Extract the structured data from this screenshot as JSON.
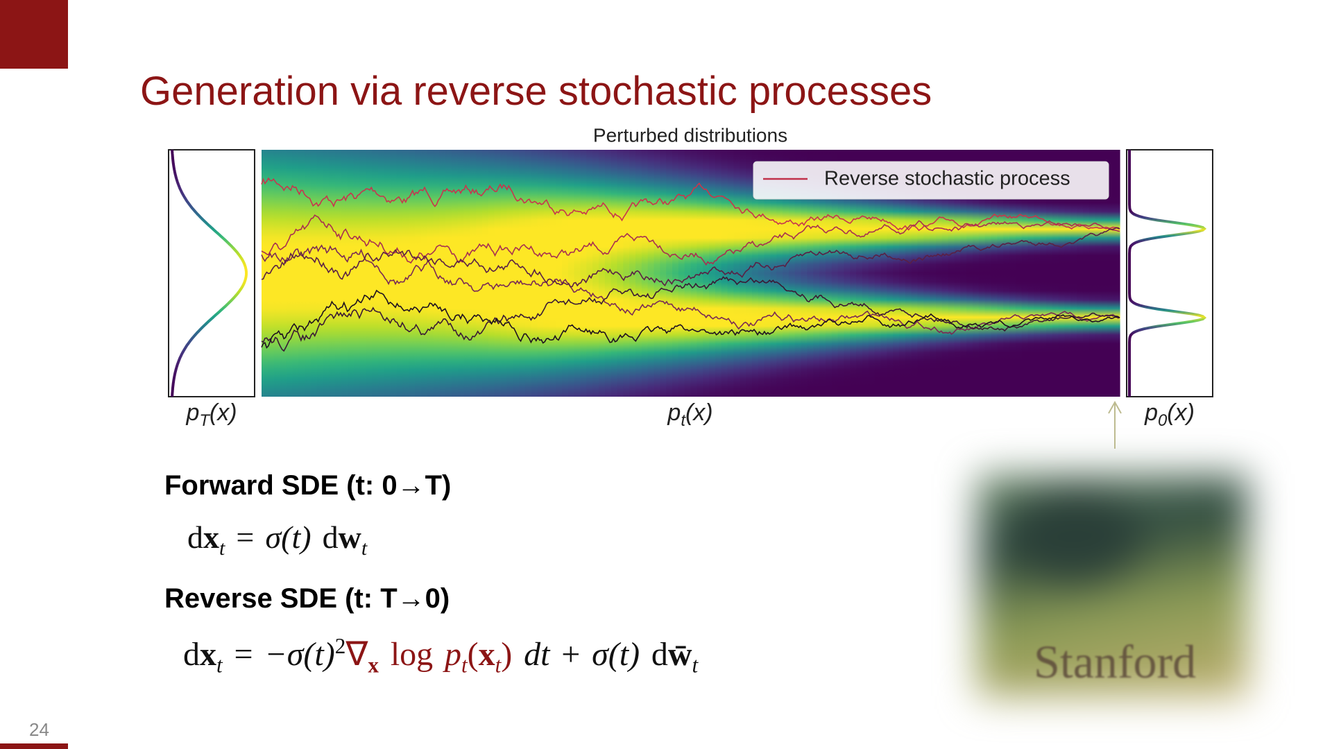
{
  "slide": {
    "title": "Generation via reverse stochastic processes",
    "page_number": "24",
    "logo": "Stanford"
  },
  "figure": {
    "title": "Perturbed distributions",
    "legend": "Reverse stochastic process",
    "labels": [
      {
        "p": "p",
        "sub": "T",
        "arg": "(x)"
      },
      {
        "p": "p",
        "sub": "t",
        "arg": "(x)"
      },
      {
        "p": "p",
        "sub": "0",
        "arg": "(x)"
      }
    ]
  },
  "forward": {
    "heading": "Forward SDE (t: 0→T)",
    "equation": [
      "d",
      "x",
      "t",
      "=",
      "σ(t)",
      "d",
      "w",
      "t"
    ]
  },
  "reverse": {
    "heading": "Reverse SDE (t: T→0)",
    "equation": [
      "d",
      "x",
      "t",
      "=",
      "−σ(t)",
      "2",
      "∇",
      "x",
      "log",
      "p",
      "t",
      "(",
      "x",
      "t",
      ")",
      "dt",
      "+",
      "σ(t)",
      "d",
      "w̄",
      "t"
    ]
  }
}
